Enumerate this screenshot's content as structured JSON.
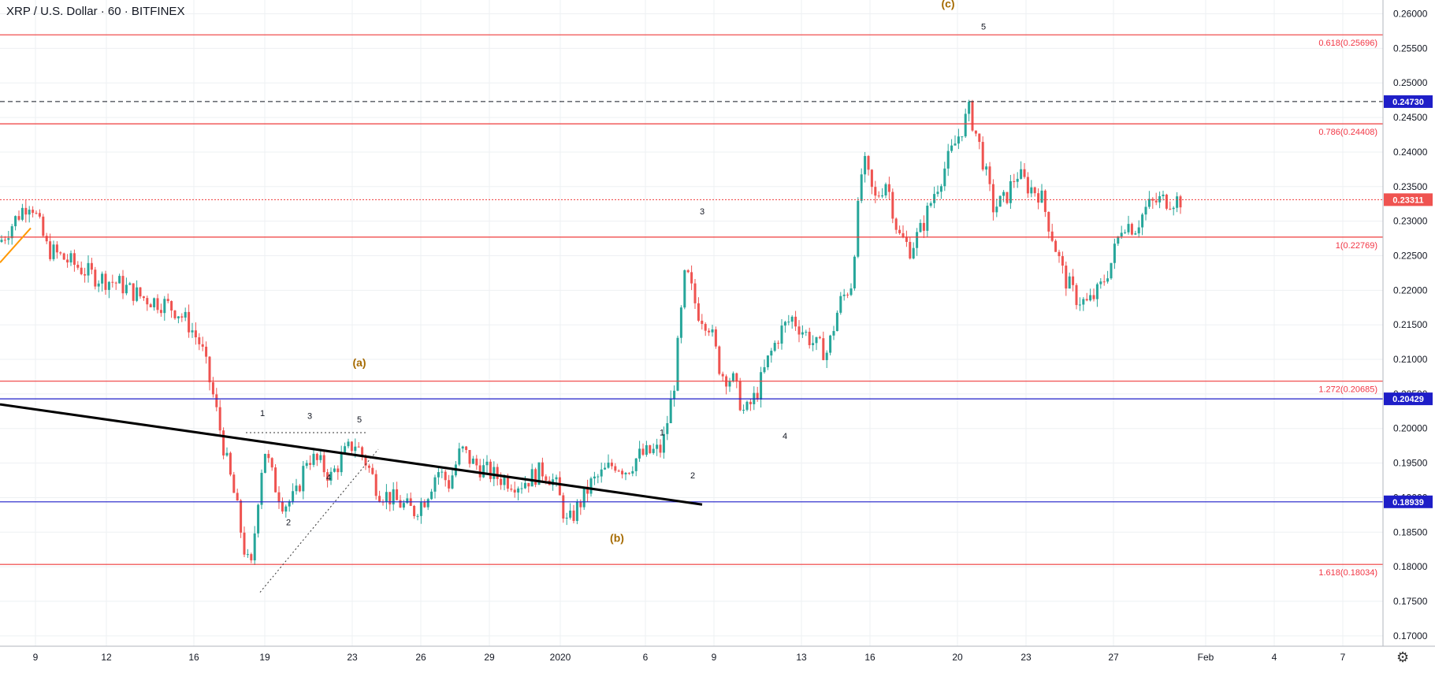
{
  "header": {
    "title": "XRP / U.S. Dollar · 60 · BITFINEX"
  },
  "colors": {
    "up": "#26a69a",
    "down": "#ef5350",
    "fib_line": "#ef3b3b",
    "fib_text": "#f23645",
    "support_line": "#1e1ec8",
    "trend_line": "#000000",
    "wave_major": "#a56a00",
    "wave_minor": "#131722",
    "grid": "#eef0f3",
    "orange_line": "#ff9800"
  },
  "icons": {
    "settings": "gear-icon"
  },
  "chart_data": {
    "type": "candlestick",
    "title": "XRP / U.S. Dollar · 60 · BITFINEX",
    "y_axis": {
      "side": "right",
      "ylim": [
        0.1685,
        0.262
      ],
      "ticks": [
        "0.17000",
        "0.17500",
        "0.18000",
        "0.18500",
        "0.19000",
        "0.19500",
        "0.20000",
        "0.20500",
        "0.21000",
        "0.21500",
        "0.22000",
        "0.22500",
        "0.23000",
        "0.23500",
        "0.24000",
        "0.24500",
        "0.25000",
        "0.25500",
        "0.26000"
      ]
    },
    "x_axis": {
      "ticks": [
        "9",
        "12",
        "16",
        "19",
        "23",
        "26",
        "29",
        "2020",
        "6",
        "9",
        "13",
        "16",
        "20",
        "23",
        "27",
        "Feb",
        "4",
        "7"
      ],
      "tick_index": [
        1.5,
        4.5,
        8.2,
        11.2,
        14.9,
        17.8,
        20.7,
        23.7,
        27.3,
        30.2,
        33.9,
        36.8,
        40.5,
        43.4,
        47.1,
        51,
        53.9,
        56.8
      ]
    },
    "grid": true,
    "horizontal_levels": [
      {
        "price": 0.25696,
        "style": "solid",
        "label": "0.618(0.25696)",
        "kind": "fib"
      },
      {
        "price": 0.2473,
        "style": "dashed",
        "label": "0.24730",
        "kind": "current-blue"
      },
      {
        "price": 0.24408,
        "style": "solid",
        "label": "0.786(0.24408)",
        "kind": "fib"
      },
      {
        "price": 0.23311,
        "style": "dotted",
        "label": "0.23311",
        "kind": "last-price"
      },
      {
        "price": 0.22769,
        "style": "solid",
        "label": "1(0.22769)",
        "kind": "fib"
      },
      {
        "price": 0.20685,
        "style": "solid",
        "label": "1.272(0.20685)",
        "kind": "fib"
      },
      {
        "price": 0.20429,
        "style": "solid",
        "label": "0.20429",
        "kind": "support"
      },
      {
        "price": 0.18939,
        "style": "solid",
        "label": "0.18939",
        "kind": "support"
      },
      {
        "price": 0.18034,
        "style": "solid",
        "label": "1.618(0.18034)",
        "kind": "fib"
      }
    ],
    "trendlines": [
      {
        "from": [
          0.0,
          0.2035
        ],
        "to": [
          29.7,
          0.189
        ],
        "style": "solid-thick"
      },
      {
        "from": [
          11.0,
          0.1763
        ],
        "to": [
          16.0,
          0.197
        ],
        "style": "dotted"
      },
      {
        "from": [
          10.4,
          0.1994
        ],
        "to": [
          15.5,
          0.1994
        ],
        "style": "dotted"
      },
      {
        "from": [
          0.0,
          0.224
        ],
        "to": [
          1.3,
          0.229
        ],
        "style": "orange"
      }
    ],
    "wave_labels": [
      {
        "text": "(a)",
        "x": 15.2,
        "y": 0.209,
        "major": true
      },
      {
        "text": "(b)",
        "x": 26.1,
        "y": 0.1836,
        "major": true
      },
      {
        "text": "(c)",
        "x": 40.1,
        "y": 0.2609,
        "major": true
      },
      {
        "text": "1",
        "x": 11.1,
        "y": 0.2018,
        "major": false
      },
      {
        "text": "2",
        "x": 12.2,
        "y": 0.186,
        "major": false
      },
      {
        "text": "3",
        "x": 13.1,
        "y": 0.2014,
        "major": false
      },
      {
        "text": "4",
        "x": 13.9,
        "y": 0.1925,
        "major": false
      },
      {
        "text": "5",
        "x": 15.2,
        "y": 0.2009,
        "major": false
      },
      {
        "text": "1",
        "x": 28.0,
        "y": 0.199,
        "major": false
      },
      {
        "text": "2",
        "x": 29.3,
        "y": 0.1928,
        "major": false
      },
      {
        "text": "3",
        "x": 29.7,
        "y": 0.231,
        "major": false
      },
      {
        "text": "4",
        "x": 33.2,
        "y": 0.1985,
        "major": false
      },
      {
        "text": "5",
        "x": 41.6,
        "y": 0.2577,
        "major": false
      }
    ],
    "series": [
      {
        "kind": "hourly-candle-envelope",
        "x_index": [
          0,
          1,
          1.3,
          2,
          3,
          4,
          5,
          6,
          7,
          7.5,
          8,
          8.5,
          9,
          9.3,
          9.6,
          10,
          10.3,
          10.6,
          11,
          11.2,
          11.6,
          12,
          12.5,
          13,
          13.5,
          14,
          14.5,
          15,
          15.5,
          16,
          17,
          17.5,
          18,
          18.5,
          19,
          19.5,
          20,
          21,
          22,
          23,
          23.5,
          24,
          25,
          26,
          26.5,
          27,
          28,
          28.5,
          29,
          29.5,
          30,
          30.5,
          31,
          31.5,
          32,
          32.5,
          33,
          33.5,
          34,
          34.5,
          35,
          35.5,
          36,
          36.5,
          37,
          37.5,
          38,
          38.5,
          39,
          39.5,
          40,
          40.5,
          41,
          41.5,
          42,
          42.5,
          43,
          43.5,
          44,
          44.5,
          45,
          45.5,
          46,
          46.5,
          47,
          47.5,
          48,
          48.5,
          49,
          49.5,
          50
        ],
        "close": [
          0.227,
          0.232,
          0.233,
          0.226,
          0.224,
          0.222,
          0.221,
          0.219,
          0.218,
          0.217,
          0.215,
          0.212,
          0.205,
          0.2,
          0.195,
          0.189,
          0.183,
          0.179,
          0.193,
          0.197,
          0.192,
          0.189,
          0.19,
          0.196,
          0.195,
          0.193,
          0.196,
          0.198,
          0.195,
          0.191,
          0.189,
          0.188,
          0.19,
          0.194,
          0.192,
          0.197,
          0.195,
          0.193,
          0.192,
          0.194,
          0.192,
          0.186,
          0.192,
          0.195,
          0.194,
          0.196,
          0.197,
          0.206,
          0.223,
          0.217,
          0.215,
          0.208,
          0.207,
          0.202,
          0.205,
          0.21,
          0.214,
          0.216,
          0.214,
          0.212,
          0.211,
          0.218,
          0.221,
          0.239,
          0.233,
          0.236,
          0.228,
          0.226,
          0.229,
          0.234,
          0.238,
          0.242,
          0.246,
          0.24,
          0.232,
          0.233,
          0.237,
          0.235,
          0.234,
          0.228,
          0.222,
          0.219,
          0.218,
          0.22,
          0.224,
          0.23,
          0.229,
          0.232,
          0.233,
          0.2331,
          0.2331
        ]
      }
    ]
  }
}
